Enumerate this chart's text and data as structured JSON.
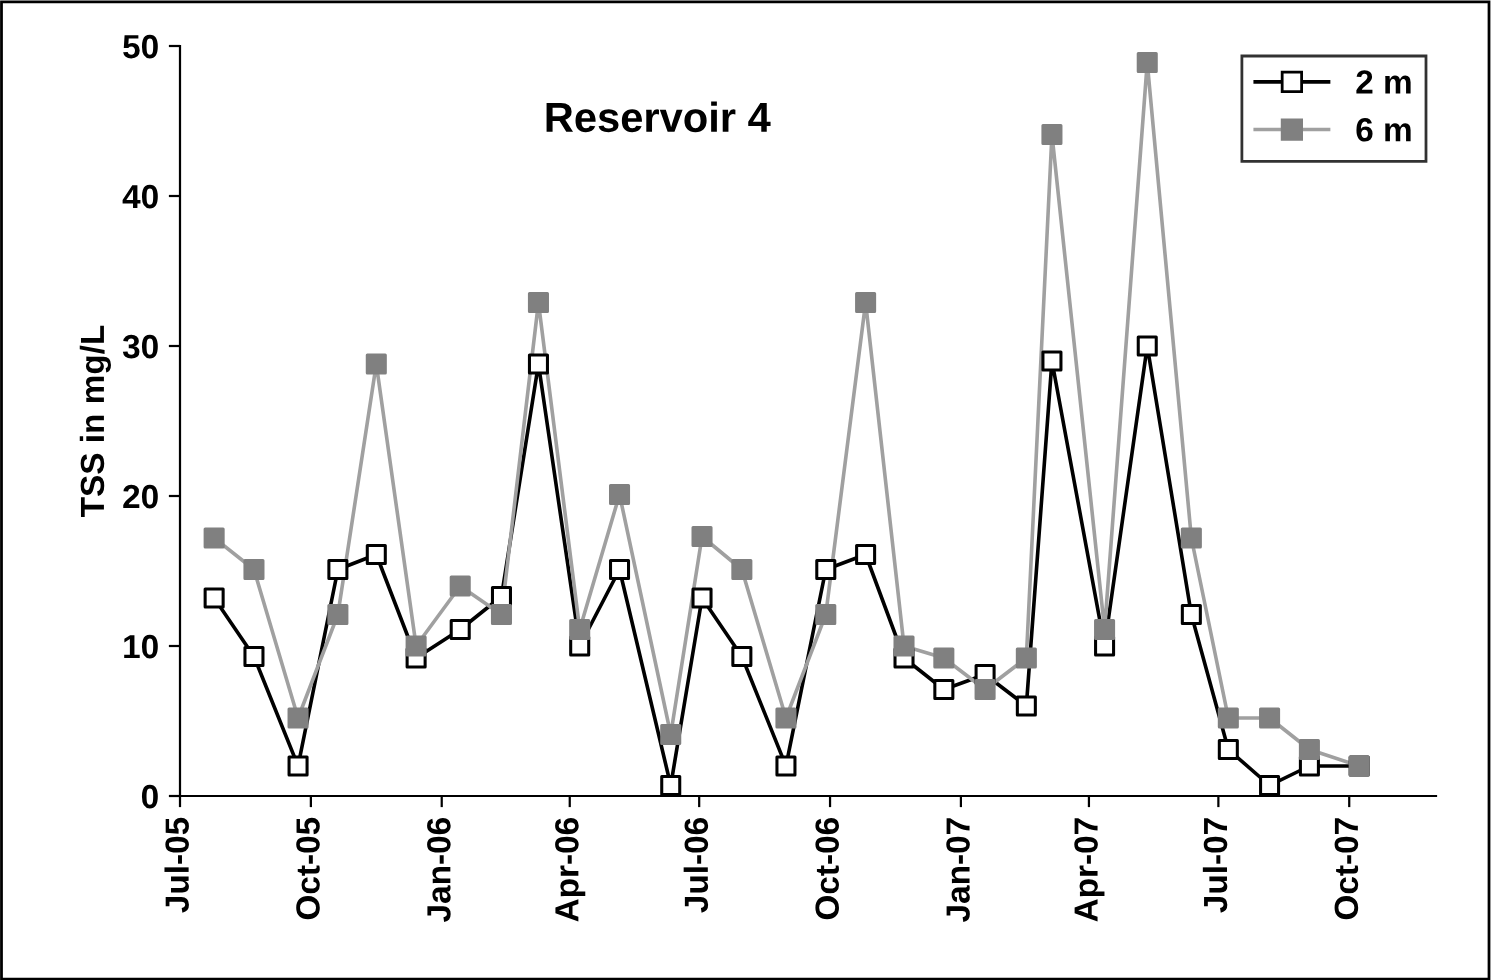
{
  "chart_data": {
    "type": "line",
    "title": "Reservoir 4",
    "ylabel": "TSS in mg/L",
    "x": [
      "2005-07-25",
      "2005-08-22",
      "2005-09-22",
      "2005-10-20",
      "2005-11-16",
      "2005-12-14",
      "2006-01-14",
      "2006-02-12",
      "2006-03-10",
      "2006-04-08",
      "2006-05-06",
      "2006-06-11",
      "2006-07-03",
      "2006-07-31",
      "2006-08-31",
      "2006-09-28",
      "2006-10-26",
      "2006-11-22",
      "2006-12-20",
      "2007-01-18",
      "2007-02-16",
      "2007-03-06",
      "2007-04-12",
      "2007-05-12",
      "2007-06-12",
      "2007-07-08",
      "2007-08-06",
      "2007-09-03",
      "2007-10-08"
    ],
    "series": [
      {
        "name": "2 m",
        "color": "#000000",
        "values": [
          13.2,
          9.3,
          2.0,
          15.1,
          16.1,
          9.2,
          11.1,
          13.3,
          28.8,
          10.0,
          15.1,
          0.7,
          13.2,
          9.3,
          2.0,
          15.1,
          16.1,
          9.2,
          7.1,
          8.1,
          6.0,
          29.0,
          10.0,
          30.0,
          12.1,
          3.1,
          0.7,
          2.0,
          2.0
        ]
      },
      {
        "name": "6 m",
        "color": "#808080",
        "values": [
          17.2,
          15.1,
          5.2,
          12.1,
          28.8,
          10.0,
          14.0,
          12.1,
          32.9,
          11.1,
          20.1,
          4.1,
          17.3,
          15.1,
          5.2,
          12.1,
          32.9,
          10.0,
          9.2,
          7.1,
          9.2,
          44.1,
          11.1,
          48.9,
          17.2,
          5.2,
          5.2,
          3.1,
          2.0
        ]
      }
    ],
    "xlim": [
      "2005-07-01",
      "2007-12-01"
    ],
    "xticks": [
      {
        "value": "2005-07-01",
        "label": "Jul-05"
      },
      {
        "value": "2005-10-01",
        "label": "Oct-05"
      },
      {
        "value": "2006-01-01",
        "label": "Jan-06"
      },
      {
        "value": "2006-04-01",
        "label": "Apr-06"
      },
      {
        "value": "2006-07-01",
        "label": "Jul-06"
      },
      {
        "value": "2006-10-01",
        "label": "Oct-06"
      },
      {
        "value": "2007-01-01",
        "label": "Jan-07"
      },
      {
        "value": "2007-04-01",
        "label": "Apr-07"
      },
      {
        "value": "2007-07-01",
        "label": "Jul-07"
      },
      {
        "value": "2007-10-01",
        "label": "Oct-07"
      }
    ],
    "ylim": [
      0,
      50
    ],
    "yticks": [
      0,
      10,
      20,
      30,
      40,
      50
    ],
    "grid": false,
    "legend": "top right",
    "marker": "square",
    "line_style": "solid"
  }
}
